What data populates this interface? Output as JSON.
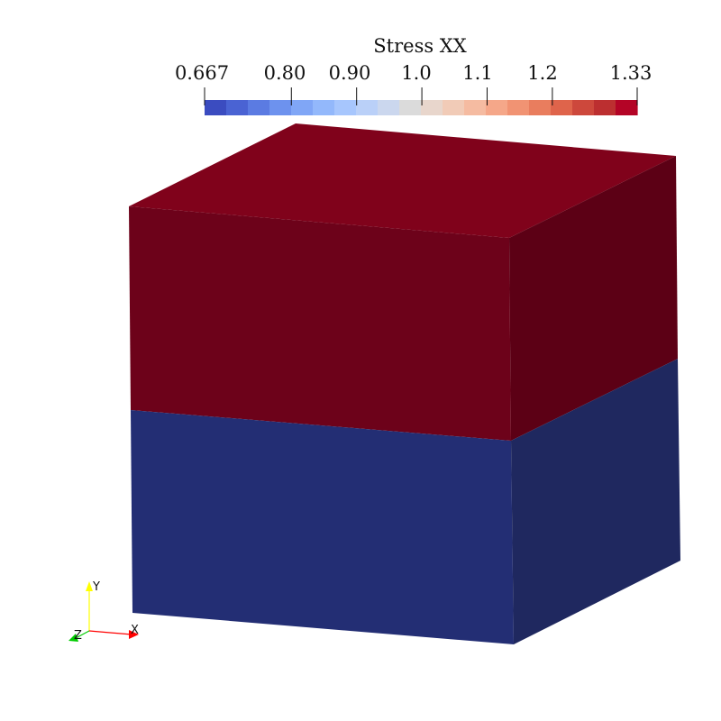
{
  "scalar_bar": {
    "title": "Stress XX",
    "tick_labels": [
      "0.667",
      "0.80",
      "0.90",
      "1.0",
      "1.1",
      "1.2",
      "1.33"
    ],
    "colors": [
      "#3b4cc0",
      "#4a63d3",
      "#5b7be2",
      "#6d92ee",
      "#80a6f6",
      "#93b8fb",
      "#a7c6fd",
      "#bad0f8",
      "#cbd7ee",
      "#dbdbdb",
      "#e8d6cc",
      "#f1cbb7",
      "#f5bba1",
      "#f5a789",
      "#f19373",
      "#e97d5e",
      "#df644b",
      "#cd483c",
      "#bc2f30",
      "#b40426"
    ],
    "min": 0.667,
    "max": 1.33,
    "tick_values": [
      0.667,
      0.8,
      0.9,
      1.0,
      1.1,
      1.2,
      1.33
    ]
  },
  "model": {
    "upper_block": {
      "front_color": "#6d021a",
      "top_color": "#80021b",
      "side_color": "#5c0015"
    },
    "lower_block": {
      "front_color": "#232e74",
      "side_color": "#1f285f"
    }
  },
  "orientation_axes": {
    "labels": {
      "x": "X",
      "y": "Y",
      "z": "Z"
    },
    "colors": {
      "x": "#ff0000",
      "y": "#ffff00",
      "z": "#00cc00"
    }
  }
}
